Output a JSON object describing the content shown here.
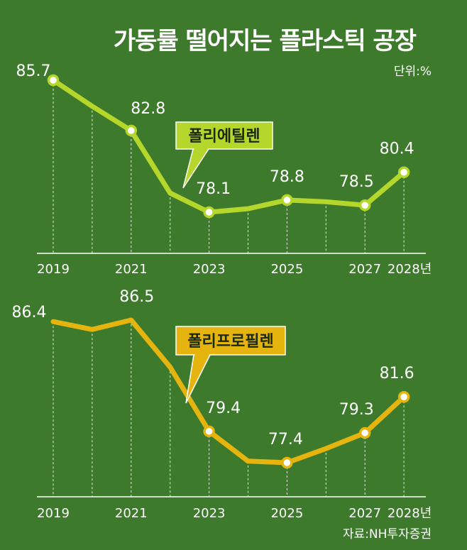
{
  "title": "가동률 떨어지는 플라스틱 공장",
  "unit": "단위:%",
  "source": "자료:NH투자증권",
  "chart_data": [
    {
      "type": "line",
      "title": "",
      "series": [
        {
          "name": "폴리에틸렌",
          "color": "#b5d62a",
          "x": [
            2019,
            2020,
            2021,
            2022,
            2023,
            2024,
            2025,
            2026,
            2027,
            2028
          ],
          "values": [
            85.7,
            84.2,
            82.8,
            79.2,
            78.1,
            78.3,
            78.8,
            78.7,
            78.5,
            80.4
          ],
          "labeled": [
            2019,
            2021,
            2023,
            2025,
            2027,
            2028
          ],
          "markers": [
            2019,
            2021,
            2023,
            2025,
            2027,
            2028
          ]
        }
      ],
      "x_ticks": [
        "2019",
        "2021",
        "2023",
        "2025",
        "2027",
        "2028년"
      ],
      "x_tick_years": [
        2019,
        2021,
        2023,
        2025,
        2027,
        2028
      ]
    },
    {
      "type": "line",
      "title": "",
      "series": [
        {
          "name": "폴리프로필렌",
          "color": "#e6b40e",
          "x": [
            2019,
            2020,
            2021,
            2022,
            2023,
            2024,
            2025,
            2026,
            2027,
            2028
          ],
          "values": [
            86.4,
            85.9,
            86.5,
            83.5,
            79.4,
            77.5,
            77.4,
            78.3,
            79.3,
            81.6
          ],
          "labeled": [
            2019,
            2021,
            2023,
            2025,
            2027,
            2028
          ],
          "markers": [
            2023,
            2025,
            2027,
            2028
          ]
        }
      ],
      "x_ticks": [
        "2019",
        "2021",
        "2023",
        "2025",
        "2027",
        "2028년"
      ],
      "x_tick_years": [
        2019,
        2021,
        2023,
        2025,
        2027,
        2028
      ]
    }
  ]
}
